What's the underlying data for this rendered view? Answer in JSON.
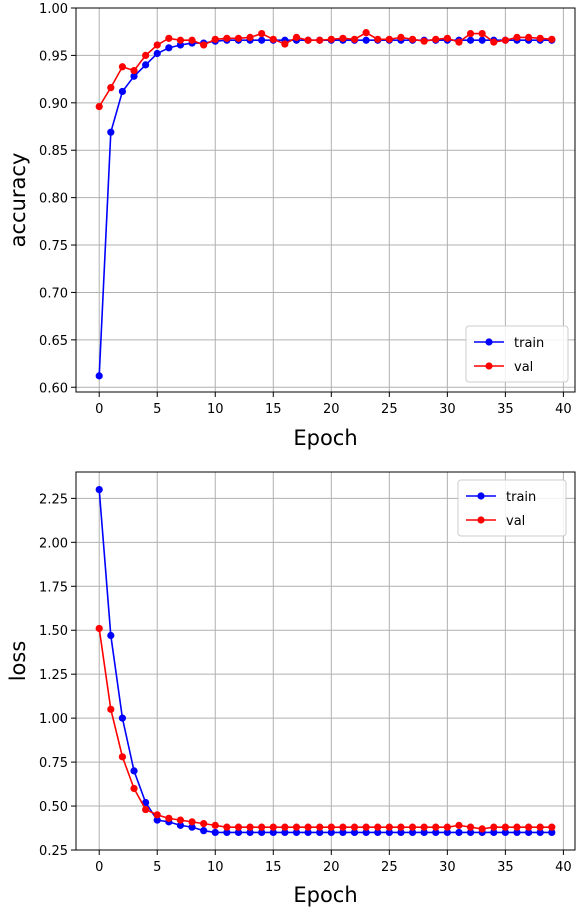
{
  "chart_data": [
    {
      "type": "line",
      "xlabel": "Epoch",
      "ylabel": "accuracy",
      "xlim": [
        -2,
        41
      ],
      "ylim": [
        0.595,
        1.0
      ],
      "xticks": [
        0,
        5,
        10,
        15,
        20,
        25,
        30,
        35,
        40
      ],
      "xtick_labels": [
        "0",
        "5",
        "10",
        "15",
        "20",
        "25",
        "30",
        "35",
        "40"
      ],
      "yticks": [
        0.6,
        0.65,
        0.7,
        0.75,
        0.8,
        0.85,
        0.9,
        0.95,
        1.0
      ],
      "ytick_labels": [
        "0.60",
        "0.65",
        "0.70",
        "0.75",
        "0.80",
        "0.85",
        "0.90",
        "0.95",
        "1.00"
      ],
      "grid": true,
      "legend_position": "lower-right",
      "x": [
        0,
        1,
        2,
        3,
        4,
        5,
        6,
        7,
        8,
        9,
        10,
        11,
        12,
        13,
        14,
        15,
        16,
        17,
        18,
        19,
        20,
        21,
        22,
        23,
        24,
        25,
        26,
        27,
        28,
        29,
        30,
        31,
        32,
        33,
        34,
        35,
        36,
        37,
        38,
        39
      ],
      "series": [
        {
          "name": "train",
          "color": "#0000ff",
          "values": [
            0.612,
            0.869,
            0.912,
            0.928,
            0.94,
            0.952,
            0.958,
            0.961,
            0.963,
            0.963,
            0.965,
            0.966,
            0.966,
            0.966,
            0.966,
            0.966,
            0.966,
            0.966,
            0.966,
            0.966,
            0.966,
            0.966,
            0.966,
            0.966,
            0.966,
            0.966,
            0.966,
            0.966,
            0.966,
            0.966,
            0.966,
            0.966,
            0.966,
            0.966,
            0.966,
            0.966,
            0.966,
            0.966,
            0.966,
            0.966
          ]
        },
        {
          "name": "val",
          "color": "#ff0000",
          "values": [
            0.896,
            0.916,
            0.938,
            0.934,
            0.95,
            0.961,
            0.968,
            0.966,
            0.966,
            0.961,
            0.967,
            0.968,
            0.968,
            0.969,
            0.973,
            0.967,
            0.962,
            0.969,
            0.966,
            0.966,
            0.967,
            0.968,
            0.967,
            0.974,
            0.967,
            0.967,
            0.969,
            0.967,
            0.965,
            0.967,
            0.968,
            0.964,
            0.973,
            0.973,
            0.964,
            0.966,
            0.969,
            0.969,
            0.968,
            0.967
          ]
        }
      ]
    },
    {
      "type": "line",
      "xlabel": "Epoch",
      "ylabel": "loss",
      "xlim": [
        -2,
        41
      ],
      "ylim": [
        0.25,
        2.4
      ],
      "xticks": [
        0,
        5,
        10,
        15,
        20,
        25,
        30,
        35,
        40
      ],
      "xtick_labels": [
        "0",
        "5",
        "10",
        "15",
        "20",
        "25",
        "30",
        "35",
        "40"
      ],
      "yticks": [
        0.25,
        0.5,
        0.75,
        1.0,
        1.25,
        1.5,
        1.75,
        2.0,
        2.25
      ],
      "ytick_labels": [
        "0.25",
        "0.50",
        "0.75",
        "1.00",
        "1.25",
        "1.50",
        "1.75",
        "2.00",
        "2.25"
      ],
      "grid": true,
      "legend_position": "upper-right",
      "x": [
        0,
        1,
        2,
        3,
        4,
        5,
        6,
        7,
        8,
        9,
        10,
        11,
        12,
        13,
        14,
        15,
        16,
        17,
        18,
        19,
        20,
        21,
        22,
        23,
        24,
        25,
        26,
        27,
        28,
        29,
        30,
        31,
        32,
        33,
        34,
        35,
        36,
        37,
        38,
        39
      ],
      "series": [
        {
          "name": "train",
          "color": "#0000ff",
          "values": [
            2.3,
            1.47,
            1.0,
            0.7,
            0.52,
            0.42,
            0.41,
            0.39,
            0.38,
            0.36,
            0.35,
            0.35,
            0.35,
            0.35,
            0.35,
            0.35,
            0.35,
            0.35,
            0.35,
            0.35,
            0.35,
            0.35,
            0.35,
            0.35,
            0.35,
            0.35,
            0.35,
            0.35,
            0.35,
            0.35,
            0.35,
            0.35,
            0.35,
            0.35,
            0.35,
            0.35,
            0.35,
            0.35,
            0.35,
            0.35
          ]
        },
        {
          "name": "val",
          "color": "#ff0000",
          "values": [
            1.51,
            1.05,
            0.78,
            0.6,
            0.48,
            0.45,
            0.43,
            0.42,
            0.41,
            0.4,
            0.39,
            0.38,
            0.38,
            0.38,
            0.38,
            0.38,
            0.38,
            0.38,
            0.38,
            0.38,
            0.38,
            0.38,
            0.38,
            0.38,
            0.38,
            0.38,
            0.38,
            0.38,
            0.38,
            0.38,
            0.38,
            0.39,
            0.38,
            0.37,
            0.38,
            0.38,
            0.38,
            0.38,
            0.38,
            0.38
          ]
        }
      ]
    }
  ]
}
